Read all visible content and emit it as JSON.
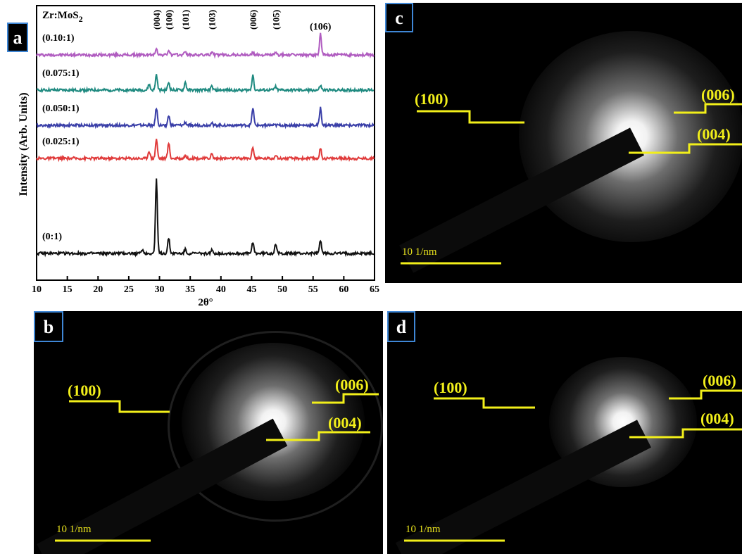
{
  "panels": {
    "a": {
      "letter": "a"
    },
    "b": {
      "letter": "b"
    },
    "c": {
      "letter": "c"
    },
    "d": {
      "letter": "d"
    }
  },
  "saed": {
    "label_100": "(100)",
    "label_006": "(006)",
    "label_004": "(004)",
    "scale": "10 1/nm",
    "line_color": "#f2ef1a"
  },
  "chart_data": {
    "type": "line",
    "title_prefix": "Zr:MoS",
    "title_sub": "2",
    "xlabel": "2θ°",
    "ylabel": "Intensity (Arb. Units)",
    "xlim": [
      10,
      65
    ],
    "xticks": [
      10,
      15,
      20,
      25,
      30,
      35,
      40,
      45,
      50,
      55,
      60,
      65
    ],
    "yticks": false,
    "grid": false,
    "peak_labels": [
      {
        "text": "(004)",
        "x": 29.5
      },
      {
        "text": "(100)",
        "x": 31.5
      },
      {
        "text": "(101)",
        "x": 34.2
      },
      {
        "text": "(103)",
        "x": 38.5
      },
      {
        "text": "(006)",
        "x": 45.2
      },
      {
        "text": "(105)",
        "x": 48.9
      },
      {
        "text": "(106)",
        "x": 56.2
      }
    ],
    "series": [
      {
        "name": "(0.10:1)",
        "color": "#b05cc0",
        "offset": 4.0,
        "peaks": [
          [
            29.5,
            0.18
          ],
          [
            31.5,
            0.12
          ],
          [
            34.2,
            0.1
          ],
          [
            38.5,
            0.08
          ],
          [
            45.2,
            0.06
          ],
          [
            48.9,
            0.05
          ],
          [
            56.2,
            0.55
          ]
        ]
      },
      {
        "name": "(0.075:1)",
        "color": "#1f8a80",
        "offset": 3.05,
        "peaks": [
          [
            28.3,
            0.15
          ],
          [
            29.5,
            0.4
          ],
          [
            31.5,
            0.2
          ],
          [
            34.2,
            0.2
          ],
          [
            38.5,
            0.1
          ],
          [
            45.2,
            0.4
          ],
          [
            48.9,
            0.1
          ],
          [
            56.2,
            0.12
          ]
        ]
      },
      {
        "name": "(0.050:1)",
        "color": "#3a3fa8",
        "offset": 2.2,
        "peaks": [
          [
            29.5,
            0.45
          ],
          [
            31.5,
            0.25
          ],
          [
            34.2,
            0.08
          ],
          [
            38.5,
            0.08
          ],
          [
            45.2,
            0.45
          ],
          [
            56.2,
            0.45
          ]
        ]
      },
      {
        "name": "(0.025:1)",
        "color": "#e03b3b",
        "offset": 1.35,
        "peaks": [
          [
            28.3,
            0.2
          ],
          [
            29.5,
            0.5
          ],
          [
            31.5,
            0.4
          ],
          [
            34.2,
            0.08
          ],
          [
            38.5,
            0.12
          ],
          [
            45.2,
            0.3
          ],
          [
            48.9,
            0.1
          ],
          [
            56.2,
            0.25
          ]
        ]
      },
      {
        "name": "(0:1)",
        "color": "#111111",
        "offset": 0.0,
        "peaks": [
          [
            27.2,
            0.1
          ],
          [
            29.5,
            1.9
          ],
          [
            31.5,
            0.4
          ],
          [
            34.2,
            0.1
          ],
          [
            38.5,
            0.08
          ],
          [
            45.2,
            0.3
          ],
          [
            48.9,
            0.25
          ],
          [
            56.2,
            0.35
          ]
        ]
      }
    ]
  }
}
